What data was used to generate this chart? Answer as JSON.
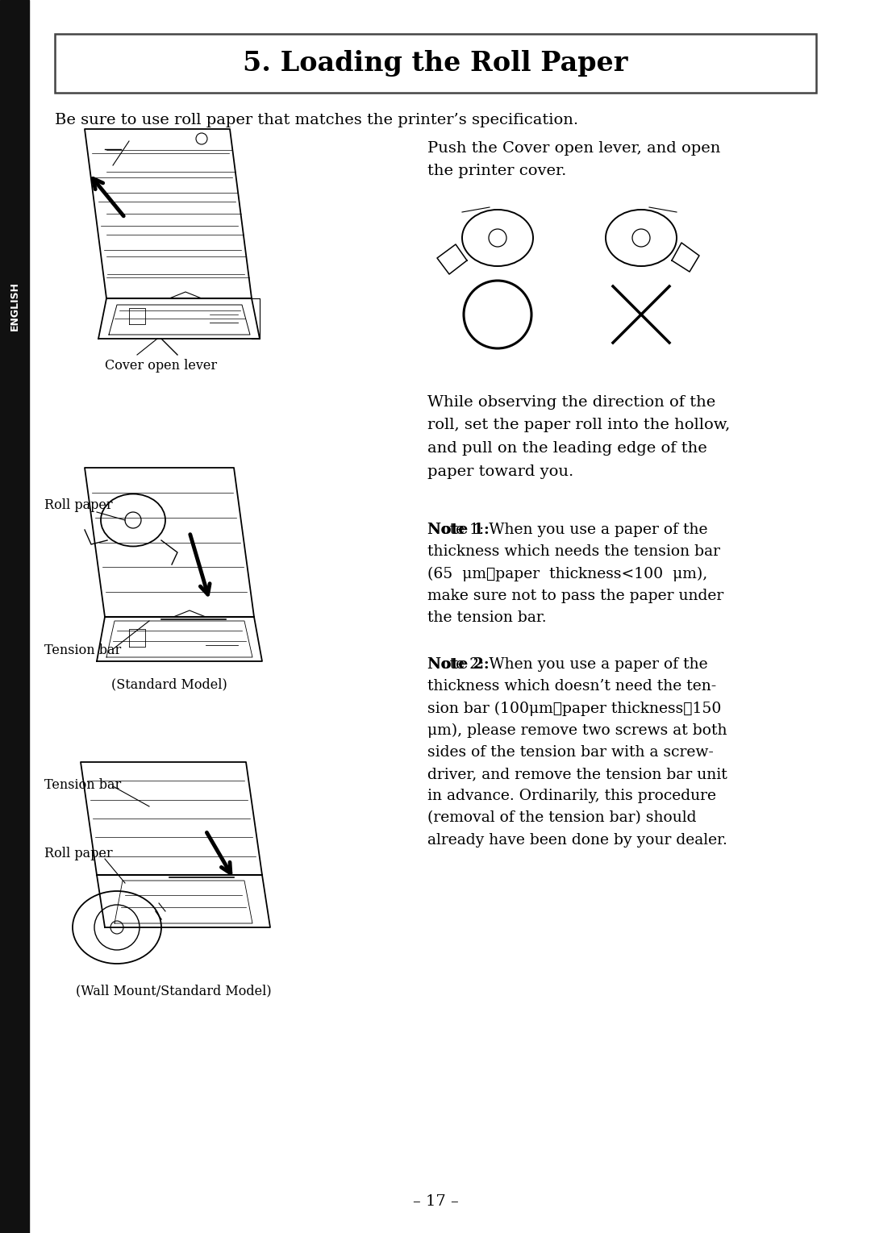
{
  "title": "5. Loading the Roll Paper",
  "background_color": "#ffffff",
  "sidebar_color": "#111111",
  "sidebar_text": "ENGLISH",
  "intro_text": "Be sure to use roll paper that matches the printer’s specification.",
  "section1_text": "Push the Cover open lever, and open\nthe printer cover.",
  "label_cover_lever": "Cover open lever",
  "label_roll_paper_mid": "Roll paper",
  "label_tension_bar_mid": "Tension bar",
  "label_standard_model": "(Standard Model)",
  "label_tension_bar_bot": "Tension bar",
  "label_roll_paper_bot": "Roll paper",
  "label_wall_mount": "(Wall Mount/Standard Model)",
  "section2_text": "While observing the direction of the\nroll, set the paper roll into the hollow,\nand pull on the leading edge of the\npaper toward you.",
  "note1_line1": "Note 1:",
  "note1_rest": " When you use a paper of the",
  "note1_line2": "thickness which needs the tension bar",
  "note1_line3": "(65  μm≦paper  thickness<100  μm),",
  "note1_line4": "make sure not to pass the paper under",
  "note1_line5": "the tension bar.",
  "note2_line1": "Note 2:",
  "note2_rest": " When you use a paper of the",
  "note2_line2": "thickness which doesn’t need the ten-",
  "note2_line3": "sion bar (100μm≦paper thickness≦150",
  "note2_line4": "μm), please remove two screws at both",
  "note2_line5": "sides of the tension bar with a screw-",
  "note2_line6": "driver, and remove the tension bar unit",
  "note2_line7": "in advance. Ordinarily, this procedure",
  "note2_line8": "(removal of the tension bar) should",
  "note2_line9": "already have been done by your dealer.",
  "page_number": "– 17 –",
  "title_fontsize": 24,
  "body_fontsize": 14,
  "label_fontsize": 11.5,
  "note_fontsize": 13.5
}
